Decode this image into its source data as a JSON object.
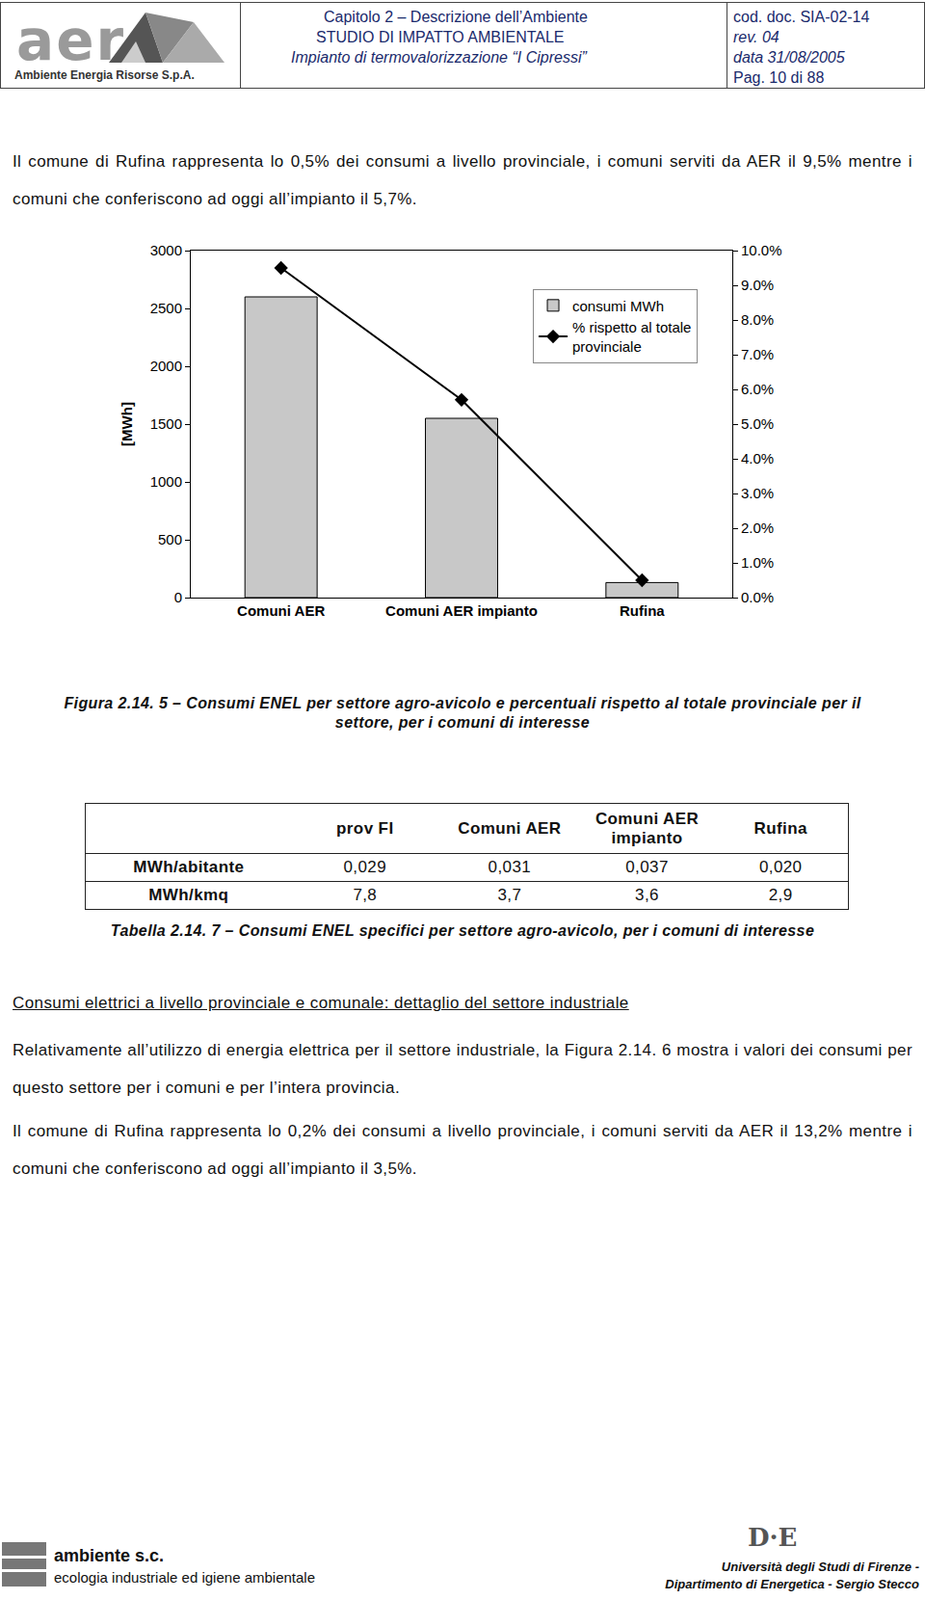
{
  "header": {
    "logo": "aer",
    "logo_subtitle": "Ambiente Energia Risorse S.p.A.",
    "middle": [
      "Capitolo 2 – Descrizione dell’Ambiente",
      "STUDIO DI IMPATTO AMBIENTALE",
      "Impianto di termovalorizzazione “I Cipressi”"
    ],
    "right": [
      "cod. doc. SIA-02-14",
      "rev. 04",
      "data 31/08/2005",
      "Pag. 10 di 88"
    ]
  },
  "paragraph_1": "Il comune di Rufina rappresenta lo 0,5% dei consumi a livello provinciale, i comuni serviti da AER il 9,5% mentre i comuni che conferiscono ad oggi all’impianto il 5,7%.",
  "chart_data": {
    "type": "bar",
    "categories": [
      "Comuni AER",
      "Comuni AER impianto",
      "Rufina"
    ],
    "y_label": "[MWh]",
    "ylim": [
      0,
      3000
    ],
    "yticks": [
      0,
      500,
      1000,
      1500,
      2000,
      2500,
      3000
    ],
    "y2lim": [
      0,
      10
    ],
    "y2ticks": [
      {
        "value": 0,
        "label": "0.0%"
      },
      {
        "value": 1,
        "label": "1.0%"
      },
      {
        "value": 2,
        "label": "2.0%"
      },
      {
        "value": 3,
        "label": "3.0%"
      },
      {
        "value": 4,
        "label": "4.0%"
      },
      {
        "value": 5,
        "label": "5.0%"
      },
      {
        "value": 6,
        "label": "6.0%"
      },
      {
        "value": 7,
        "label": "7.0%"
      },
      {
        "value": 8,
        "label": "8.0%"
      },
      {
        "value": 9,
        "label": "9.0%"
      },
      {
        "value": 10,
        "label": "10.0%"
      }
    ],
    "grid": false,
    "legend": "upper right",
    "series": [
      {
        "name": "consumi MWh",
        "type": "bar",
        "color": "#c8c8c8",
        "values": [
          2600,
          1550,
          130
        ]
      },
      {
        "name": "% rispetto al totale provinciale",
        "type": "line",
        "axis": "y2",
        "color": "#000000",
        "marker": "diamond",
        "line_style": "solid",
        "values": [
          9.5,
          5.7,
          0.5
        ]
      }
    ]
  },
  "figure_caption": "Figura 2.14. 5 – Consumi ENEL per settore agro-avicolo e percentuali rispetto al totale provinciale per il settore, per i comuni di interesse",
  "table": {
    "header": [
      "",
      "prov FI",
      "Comuni AER",
      "Comuni AER impianto",
      "Rufina"
    ],
    "rows": [
      [
        "MWh/abitante",
        "0,029",
        "0,031",
        "0,037",
        "0,020"
      ],
      [
        "MWh/kmq",
        "7,8",
        "3,7",
        "3,6",
        "2,9"
      ]
    ]
  },
  "table_caption": "Tabella 2.14. 7 – Consumi ENEL specifici per settore agro-avicolo, per i comuni di interesse",
  "section_title": "Consumi elettrici a livello provinciale e comunale: dettaglio del settore industriale",
  "paragraph_2": "Relativamente all’utilizzo di energia elettrica per il settore industriale, la Figura 2.14. 6 mostra i valori dei consumi per questo settore per i comuni e per l’intera provincia.",
  "paragraph_3": "Il comune di Rufina rappresenta lo 0,2% dei consumi a livello provinciale, i comuni serviti da AER il 13,2% mentre i comuni che conferiscono ad oggi all’impianto il 3,5%.",
  "footer": {
    "left": [
      "ambiente s.c.",
      "ecologia industriale ed igiene ambientale"
    ],
    "right_logo": "D·E",
    "right": [
      "Università degli Studi di Firenze -",
      "Dipartimento di Energetica - Sergio Stecco"
    ]
  }
}
